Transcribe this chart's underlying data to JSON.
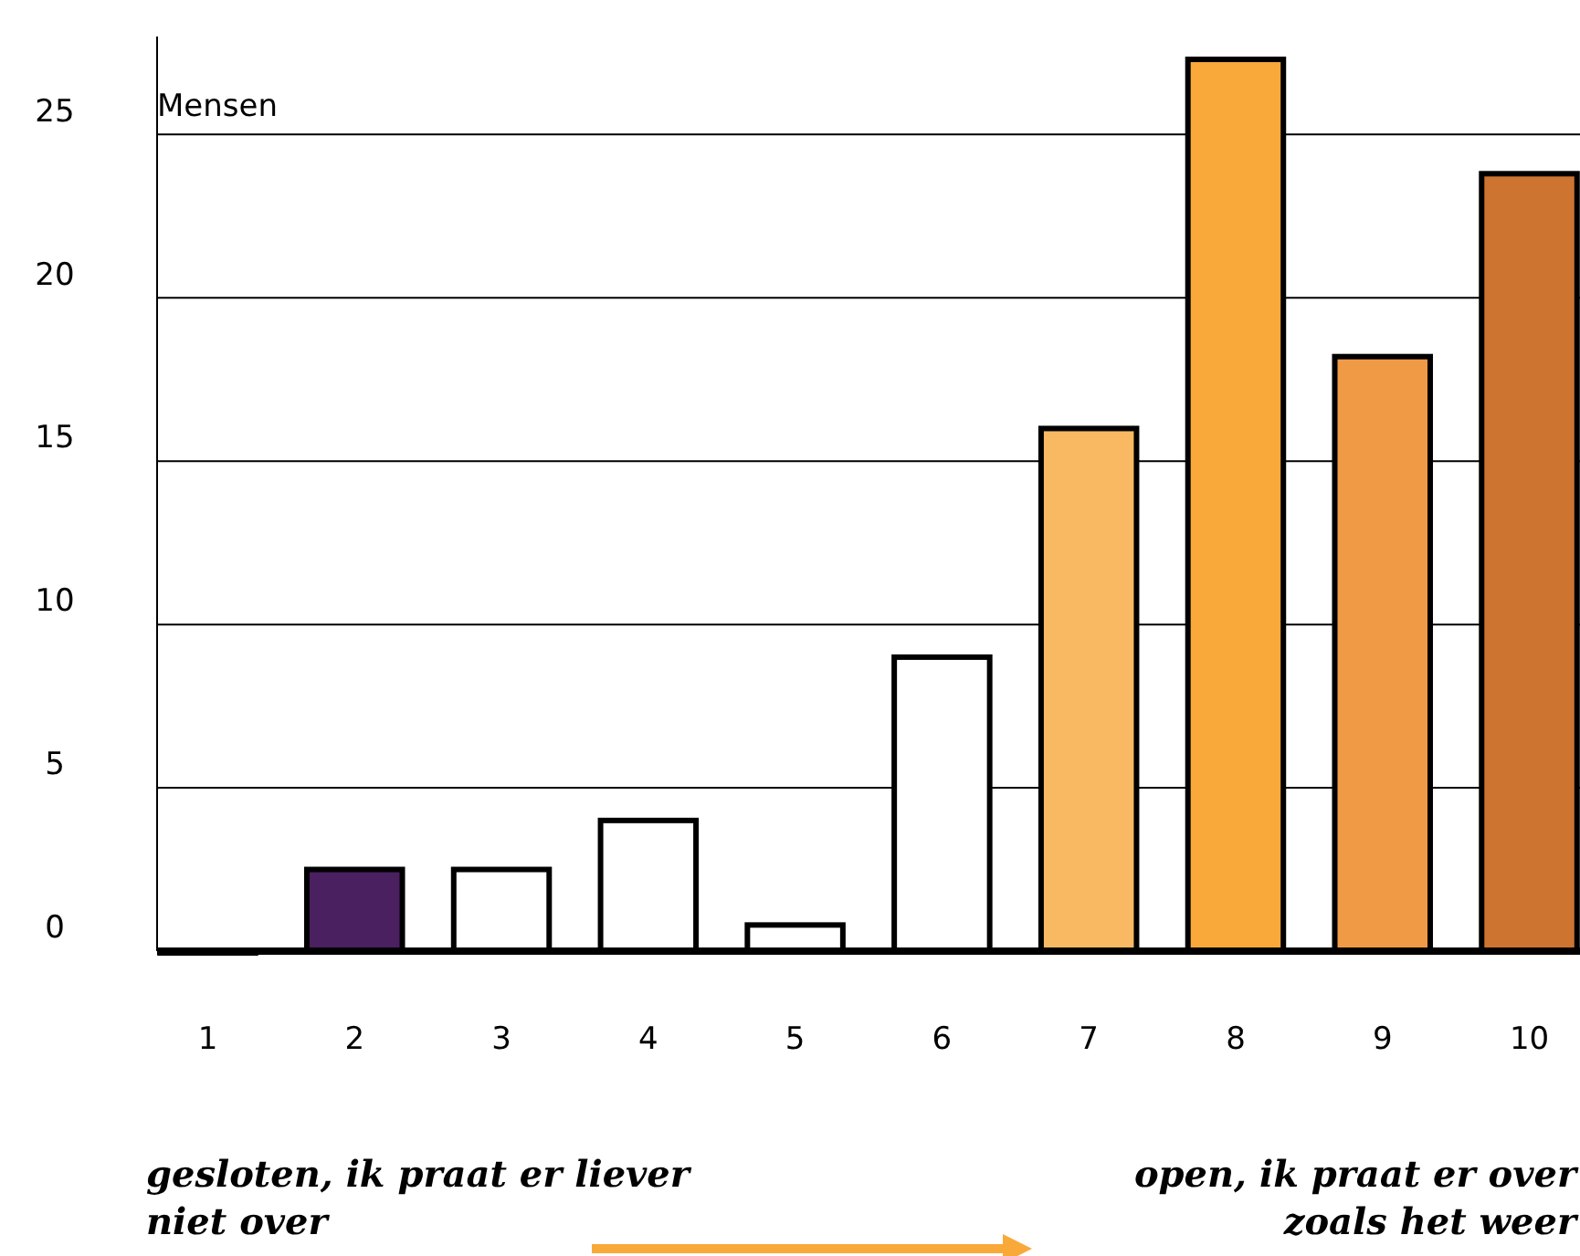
{
  "chart_data": {
    "type": "bar",
    "ylabel": "Mensen",
    "categories": [
      "1",
      "2",
      "3",
      "4",
      "5",
      "6",
      "7",
      "8",
      "9",
      "10"
    ],
    "values": [
      0,
      2.5,
      2.5,
      4,
      0.8,
      9,
      16,
      27.3,
      18.2,
      23.8
    ],
    "colors": [
      "#ffffff",
      "#4a2060",
      "#ffffff",
      "#ffffff",
      "#ffffff",
      "#ffffff",
      "#f9b963",
      "#f9a93a",
      "#f09a45",
      "#cc7430"
    ],
    "ylim": [
      0,
      28
    ],
    "yticks": [
      0,
      5,
      10,
      15,
      20,
      25
    ],
    "grid": "y",
    "annotations": [
      "gesloten, ik praat er liever niet over",
      "open, ik praat er over zoals het weer"
    ]
  }
}
